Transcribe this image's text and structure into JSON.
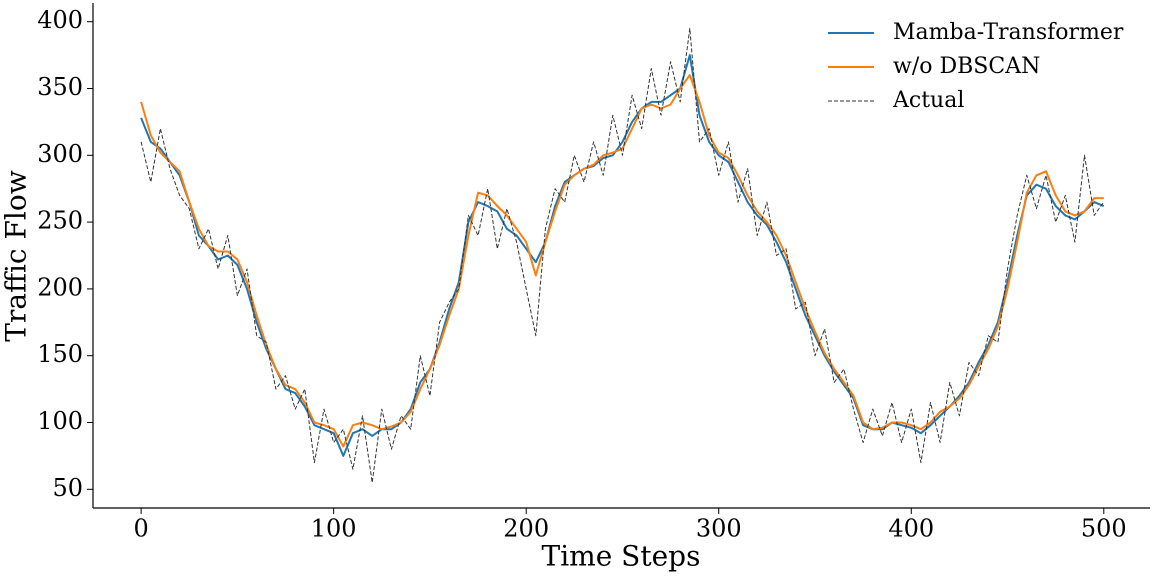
{
  "chart_data": {
    "type": "line",
    "xlabel": "Time Steps",
    "ylabel": "Traffic Flow",
    "x": [
      0,
      5,
      10,
      15,
      20,
      25,
      30,
      35,
      40,
      45,
      50,
      55,
      60,
      65,
      70,
      75,
      80,
      85,
      90,
      95,
      100,
      105,
      110,
      115,
      120,
      125,
      130,
      135,
      140,
      145,
      150,
      155,
      160,
      165,
      170,
      175,
      180,
      185,
      190,
      195,
      200,
      205,
      210,
      215,
      220,
      225,
      230,
      235,
      240,
      245,
      250,
      255,
      260,
      265,
      270,
      275,
      280,
      285,
      290,
      295,
      300,
      305,
      310,
      315,
      320,
      325,
      330,
      335,
      340,
      345,
      350,
      355,
      360,
      365,
      370,
      375,
      380,
      385,
      390,
      395,
      400,
      405,
      410,
      415,
      420,
      425,
      430,
      435,
      440,
      445,
      450,
      455,
      460,
      465,
      470,
      475,
      480,
      485,
      490,
      495,
      500
    ],
    "series": [
      {
        "name": "Mamba-Transformer",
        "color": "#1f77b4",
        "dashed": false,
        "values": [
          328,
          310,
          305,
          295,
          285,
          265,
          240,
          232,
          222,
          225,
          218,
          200,
          175,
          155,
          140,
          125,
          122,
          112,
          98,
          95,
          92,
          75,
          92,
          95,
          90,
          95,
          95,
          100,
          110,
          130,
          140,
          160,
          185,
          205,
          250,
          265,
          262,
          258,
          245,
          240,
          230,
          220,
          235,
          262,
          280,
          285,
          290,
          292,
          298,
          300,
          310,
          325,
          335,
          340,
          340,
          345,
          350,
          375,
          330,
          310,
          300,
          295,
          280,
          265,
          255,
          248,
          235,
          220,
          200,
          180,
          165,
          150,
          138,
          128,
          118,
          98,
          95,
          95,
          100,
          98,
          96,
          92,
          98,
          105,
          112,
          120,
          130,
          145,
          158,
          175,
          205,
          240,
          270,
          278,
          275,
          262,
          255,
          252,
          258,
          265,
          262
        ]
      },
      {
        "name": "w/o DBSCAN",
        "color": "#ff7f0e",
        "dashed": false,
        "values": [
          340,
          315,
          302,
          295,
          288,
          265,
          245,
          232,
          228,
          228,
          222,
          205,
          180,
          158,
          140,
          128,
          125,
          115,
          100,
          98,
          95,
          82,
          98,
          100,
          98,
          95,
          97,
          100,
          108,
          125,
          140,
          158,
          180,
          200,
          240,
          272,
          270,
          262,
          255,
          245,
          235,
          210,
          235,
          258,
          278,
          285,
          290,
          293,
          300,
          302,
          305,
          320,
          335,
          338,
          335,
          338,
          350,
          360,
          340,
          315,
          302,
          298,
          285,
          270,
          258,
          250,
          240,
          225,
          205,
          185,
          168,
          152,
          140,
          130,
          120,
          100,
          95,
          96,
          100,
          100,
          98,
          95,
          100,
          108,
          112,
          118,
          128,
          142,
          155,
          172,
          200,
          235,
          272,
          285,
          288,
          270,
          258,
          255,
          258,
          268,
          268
        ]
      },
      {
        "name": "Actual",
        "color": "#333333",
        "dashed": true,
        "values": [
          310,
          280,
          320,
          290,
          270,
          260,
          230,
          245,
          215,
          240,
          195,
          215,
          165,
          160,
          125,
          135,
          110,
          125,
          70,
          110,
          85,
          95,
          65,
          105,
          55,
          110,
          80,
          105,
          95,
          150,
          120,
          175,
          190,
          200,
          255,
          240,
          275,
          230,
          260,
          235,
          200,
          165,
          245,
          275,
          265,
          300,
          280,
          310,
          285,
          330,
          300,
          345,
          320,
          365,
          330,
          370,
          340,
          395,
          310,
          320,
          285,
          310,
          265,
          290,
          240,
          265,
          225,
          230,
          185,
          190,
          150,
          170,
          130,
          140,
          110,
          85,
          110,
          90,
          115,
          85,
          110,
          70,
          115,
          85,
          130,
          105,
          145,
          135,
          165,
          160,
          215,
          255,
          285,
          260,
          285,
          250,
          270,
          235,
          300,
          255,
          265
        ]
      }
    ],
    "xlim": [
      -25,
      524
    ],
    "xticks": [
      0,
      100,
      200,
      300,
      400,
      500
    ],
    "ylim": [
      36,
      414
    ],
    "yticks": [
      50,
      100,
      150,
      200,
      250,
      300,
      350,
      400
    ],
    "legend": "upper right"
  }
}
